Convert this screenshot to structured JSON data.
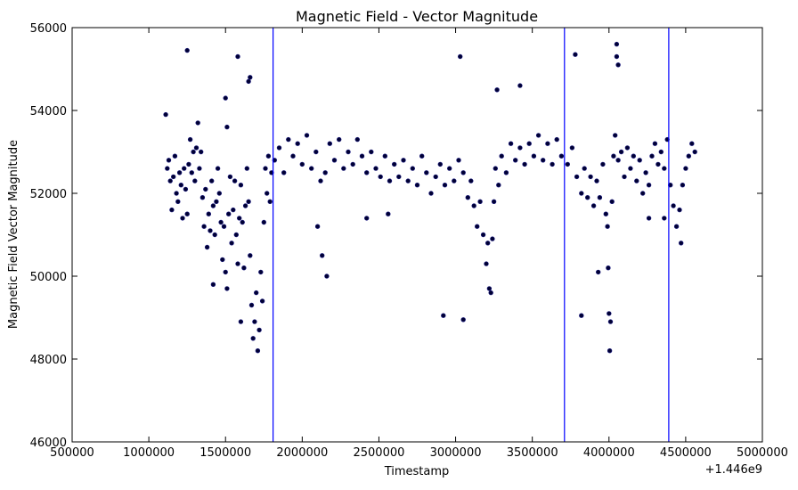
{
  "chart_data": {
    "type": "scatter",
    "title": "Magnetic Field - Vector Magnitude",
    "xlabel": "Timestamp",
    "ylabel": "Magnetic Field Vector Magnitude",
    "x_offset_label": "+1.446e9",
    "xlim": [
      500000,
      5000000
    ],
    "ylim": [
      46000,
      56000
    ],
    "xticks": [
      500000,
      1000000,
      1500000,
      2000000,
      2500000,
      3000000,
      3500000,
      4000000,
      4500000,
      5000000
    ],
    "xtick_labels": [
      "500000",
      "1000000",
      "1500000",
      "2000000",
      "2500000",
      "3000000",
      "3500000",
      "4000000",
      "4500000",
      "5000000"
    ],
    "yticks": [
      46000,
      48000,
      50000,
      52000,
      54000,
      56000
    ],
    "ytick_labels": [
      "46000",
      "48000",
      "50000",
      "52000",
      "54000",
      "56000"
    ],
    "grid": false,
    "colors": {
      "points": "#000033",
      "point_edge": "#1a1a80",
      "vlines": "#0000ff"
    },
    "vertical_lines_x": [
      1810000,
      3710000,
      4390000
    ],
    "series": [
      {
        "values": [
          [
            1110000,
            53900
          ],
          [
            1120000,
            52600
          ],
          [
            1130000,
            52800
          ],
          [
            1140000,
            52300
          ],
          [
            1150000,
            51600
          ],
          [
            1160000,
            52400
          ],
          [
            1170000,
            52900
          ],
          [
            1180000,
            52000
          ],
          [
            1190000,
            51800
          ],
          [
            1200000,
            52500
          ],
          [
            1210000,
            52200
          ],
          [
            1220000,
            51400
          ],
          [
            1230000,
            52600
          ],
          [
            1240000,
            52100
          ],
          [
            1250000,
            51500
          ],
          [
            1260000,
            52700
          ],
          [
            1270000,
            53300
          ],
          [
            1280000,
            52500
          ],
          [
            1290000,
            53000
          ],
          [
            1300000,
            52300
          ],
          [
            1310000,
            53100
          ],
          [
            1320000,
            53700
          ],
          [
            1330000,
            52600
          ],
          [
            1340000,
            53000
          ],
          [
            1350000,
            51900
          ],
          [
            1360000,
            51200
          ],
          [
            1370000,
            52100
          ],
          [
            1380000,
            50700
          ],
          [
            1390000,
            51500
          ],
          [
            1400000,
            51100
          ],
          [
            1410000,
            52300
          ],
          [
            1420000,
            51700
          ],
          [
            1430000,
            51000
          ],
          [
            1440000,
            51800
          ],
          [
            1450000,
            52600
          ],
          [
            1460000,
            52000
          ],
          [
            1470000,
            51300
          ],
          [
            1480000,
            50400
          ],
          [
            1490000,
            51200
          ],
          [
            1500000,
            50100
          ],
          [
            1510000,
            49700
          ],
          [
            1520000,
            51500
          ],
          [
            1530000,
            52400
          ],
          [
            1540000,
            50800
          ],
          [
            1550000,
            51600
          ],
          [
            1560000,
            52300
          ],
          [
            1570000,
            51000
          ],
          [
            1580000,
            50300
          ],
          [
            1590000,
            51400
          ],
          [
            1600000,
            52200
          ],
          [
            1610000,
            51300
          ],
          [
            1620000,
            50200
          ],
          [
            1630000,
            51700
          ],
          [
            1640000,
            52600
          ],
          [
            1650000,
            51800
          ],
          [
            1660000,
            50500
          ],
          [
            1670000,
            49300
          ],
          [
            1680000,
            48500
          ],
          [
            1690000,
            48900
          ],
          [
            1700000,
            49600
          ],
          [
            1710000,
            48200
          ],
          [
            1720000,
            48700
          ],
          [
            1730000,
            50100
          ],
          [
            1740000,
            49400
          ],
          [
            1750000,
            51300
          ],
          [
            1760000,
            52600
          ],
          [
            1770000,
            52000
          ],
          [
            1780000,
            52900
          ],
          [
            1790000,
            51800
          ],
          [
            1800000,
            52500
          ],
          [
            1820000,
            52800
          ],
          [
            1850000,
            53100
          ],
          [
            1880000,
            52500
          ],
          [
            1910000,
            53300
          ],
          [
            1940000,
            52900
          ],
          [
            1970000,
            53200
          ],
          [
            2000000,
            52700
          ],
          [
            2030000,
            53400
          ],
          [
            2060000,
            52600
          ],
          [
            2090000,
            53000
          ],
          [
            2120000,
            52300
          ],
          [
            2150000,
            52500
          ],
          [
            2180000,
            53200
          ],
          [
            2210000,
            52800
          ],
          [
            2240000,
            53300
          ],
          [
            2270000,
            52600
          ],
          [
            2300000,
            53000
          ],
          [
            2330000,
            52700
          ],
          [
            2360000,
            53300
          ],
          [
            2390000,
            52900
          ],
          [
            2420000,
            52500
          ],
          [
            2450000,
            53000
          ],
          [
            2480000,
            52600
          ],
          [
            2510000,
            52400
          ],
          [
            2540000,
            52900
          ],
          [
            2570000,
            52300
          ],
          [
            2600000,
            52700
          ],
          [
            2630000,
            52400
          ],
          [
            2660000,
            52800
          ],
          [
            2690000,
            52300
          ],
          [
            2720000,
            52600
          ],
          [
            2750000,
            52200
          ],
          [
            2780000,
            52900
          ],
          [
            2810000,
            52500
          ],
          [
            2840000,
            52000
          ],
          [
            2870000,
            52400
          ],
          [
            2900000,
            52700
          ],
          [
            2930000,
            52200
          ],
          [
            2960000,
            52600
          ],
          [
            2990000,
            52300
          ],
          [
            3020000,
            52800
          ],
          [
            3050000,
            52500
          ],
          [
            3080000,
            51900
          ],
          [
            3100000,
            52300
          ],
          [
            3120000,
            51700
          ],
          [
            3140000,
            51200
          ],
          [
            3160000,
            51800
          ],
          [
            3180000,
            51000
          ],
          [
            3200000,
            50300
          ],
          [
            3210000,
            50800
          ],
          [
            3220000,
            49700
          ],
          [
            3230000,
            49600
          ],
          [
            3240000,
            50900
          ],
          [
            3250000,
            51800
          ],
          [
            3260000,
            52600
          ],
          [
            3280000,
            52200
          ],
          [
            3300000,
            52900
          ],
          [
            3330000,
            52500
          ],
          [
            3360000,
            53200
          ],
          [
            3390000,
            52800
          ],
          [
            3420000,
            53100
          ],
          [
            3450000,
            52700
          ],
          [
            3480000,
            53200
          ],
          [
            3510000,
            52900
          ],
          [
            3540000,
            53400
          ],
          [
            3570000,
            52800
          ],
          [
            3600000,
            53200
          ],
          [
            3630000,
            52700
          ],
          [
            3660000,
            53300
          ],
          [
            3690000,
            52900
          ],
          [
            3730000,
            52700
          ],
          [
            3760000,
            53100
          ],
          [
            3790000,
            52400
          ],
          [
            3820000,
            52000
          ],
          [
            3840000,
            52600
          ],
          [
            3860000,
            51900
          ],
          [
            3880000,
            52400
          ],
          [
            3900000,
            51700
          ],
          [
            3920000,
            52300
          ],
          [
            3940000,
            51900
          ],
          [
            3960000,
            52700
          ],
          [
            3980000,
            51500
          ],
          [
            3990000,
            51200
          ],
          [
            3995000,
            50200
          ],
          [
            4000000,
            49100
          ],
          [
            4005000,
            48200
          ],
          [
            4010000,
            48900
          ],
          [
            4020000,
            51800
          ],
          [
            4030000,
            52900
          ],
          [
            4040000,
            53400
          ],
          [
            4050000,
            55300
          ],
          [
            4060000,
            52800
          ],
          [
            4080000,
            53000
          ],
          [
            4100000,
            52400
          ],
          [
            4120000,
            53100
          ],
          [
            4140000,
            52600
          ],
          [
            4160000,
            52900
          ],
          [
            4180000,
            52300
          ],
          [
            4200000,
            52800
          ],
          [
            4220000,
            52000
          ],
          [
            4240000,
            52500
          ],
          [
            4260000,
            52200
          ],
          [
            4280000,
            52900
          ],
          [
            4300000,
            53200
          ],
          [
            4320000,
            52700
          ],
          [
            4340000,
            53000
          ],
          [
            4360000,
            52600
          ],
          [
            4380000,
            53300
          ],
          [
            4400000,
            52200
          ],
          [
            4420000,
            51700
          ],
          [
            4440000,
            51200
          ],
          [
            4460000,
            51600
          ],
          [
            4480000,
            52200
          ],
          [
            4500000,
            52600
          ],
          [
            4520000,
            52900
          ],
          [
            4540000,
            53200
          ],
          [
            4560000,
            53000
          ],
          [
            1250000,
            55450
          ],
          [
            1580000,
            55300
          ],
          [
            1650000,
            54700
          ],
          [
            1660000,
            54800
          ],
          [
            3030000,
            55300
          ],
          [
            3420000,
            54600
          ],
          [
            3780000,
            55350
          ],
          [
            4050000,
            55600
          ],
          [
            4060000,
            55100
          ],
          [
            1600000,
            48900
          ],
          [
            2100000,
            51200
          ],
          [
            2130000,
            50500
          ],
          [
            2160000,
            50000
          ],
          [
            2420000,
            51400
          ],
          [
            2920000,
            49050
          ],
          [
            3050000,
            48950
          ],
          [
            3820000,
            49050
          ],
          [
            3930000,
            50100
          ],
          [
            4470000,
            50800
          ],
          [
            4260000,
            51400
          ],
          [
            4360000,
            51400
          ],
          [
            1420000,
            49800
          ],
          [
            2560000,
            51500
          ],
          [
            3270000,
            54500
          ],
          [
            1500000,
            54300
          ],
          [
            1510000,
            53600
          ]
        ]
      }
    ]
  }
}
